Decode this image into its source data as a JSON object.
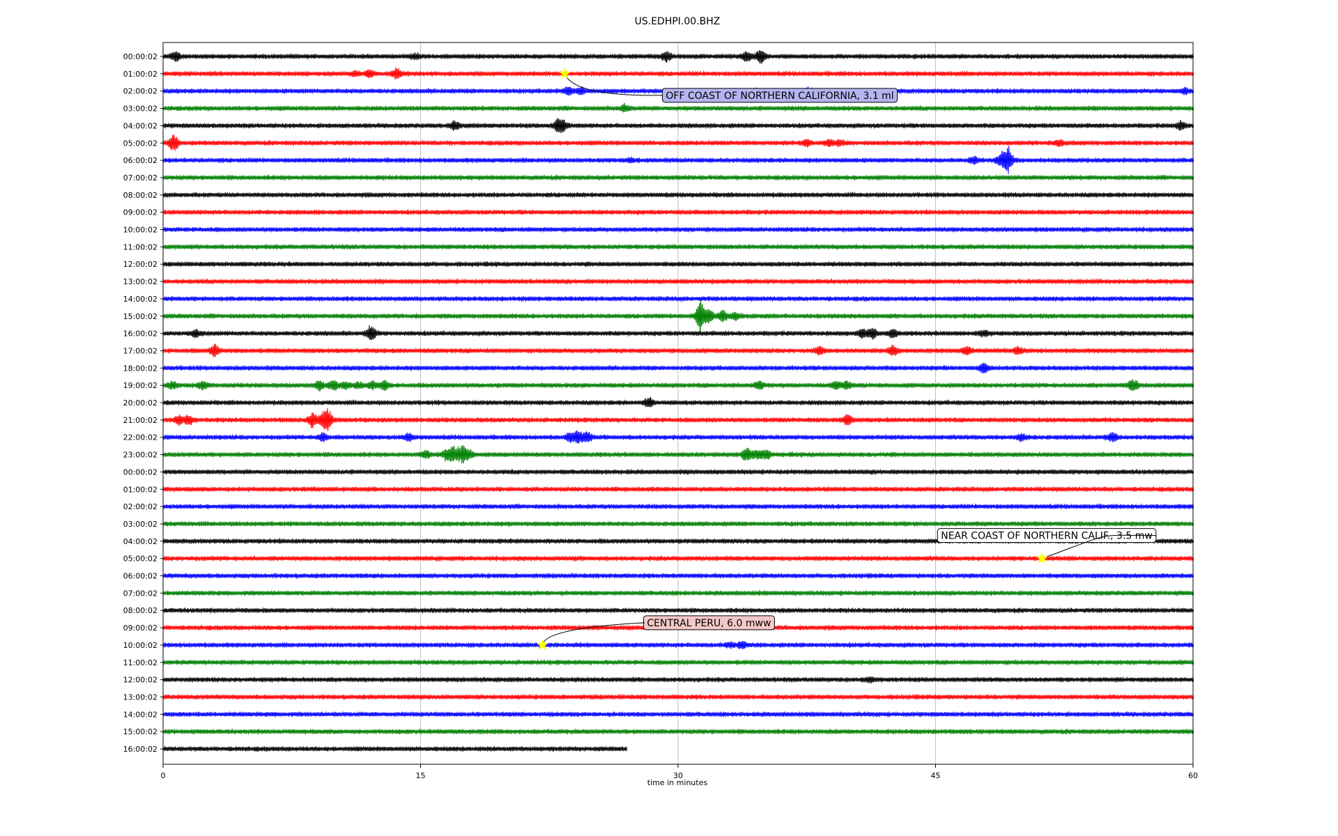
{
  "chart_data": {
    "type": "line",
    "title": "US.EDHPI.00.BHZ",
    "xlabel": "time in minutes",
    "ylabel": "",
    "xlim": [
      0,
      60
    ],
    "xticks": [
      0,
      15,
      30,
      45,
      60
    ],
    "grid": "vertical",
    "colors": [
      "#000000",
      "#ff0000",
      "#0000ff",
      "#008000"
    ],
    "row_labels": [
      "00:00:02",
      "01:00:02",
      "02:00:02",
      "03:00:02",
      "04:00:02",
      "05:00:02",
      "06:00:02",
      "07:00:02",
      "08:00:02",
      "09:00:02",
      "10:00:02",
      "11:00:02",
      "12:00:02",
      "13:00:02",
      "14:00:02",
      "15:00:02",
      "16:00:02",
      "17:00:02",
      "18:00:02",
      "19:00:02",
      "20:00:02",
      "21:00:02",
      "22:00:02",
      "23:00:02",
      "00:00:02",
      "01:00:02",
      "02:00:02",
      "03:00:02",
      "04:00:02",
      "05:00:02",
      "06:00:02",
      "07:00:02",
      "08:00:02",
      "09:00:02",
      "10:00:02",
      "11:00:02",
      "12:00:02",
      "13:00:02",
      "14:00:02",
      "15:00:02",
      "16:00:02"
    ],
    "last_row_end_minutes": 27,
    "bursts": [
      [
        0,
        0.7,
        0.6
      ],
      [
        0,
        29.3,
        0.6
      ],
      [
        0,
        34,
        0.6
      ],
      [
        0,
        34.8,
        0.8
      ],
      [
        0,
        14.7,
        0.3
      ],
      [
        1,
        12,
        0.4
      ],
      [
        1,
        13.6,
        0.6
      ],
      [
        1,
        11.2,
        0.3
      ],
      [
        2,
        23.6,
        0.5
      ],
      [
        2,
        24.3,
        0.4
      ],
      [
        2,
        37.5,
        0.4
      ],
      [
        2,
        34.5,
        0.3
      ],
      [
        2,
        59.5,
        0.3
      ],
      [
        3,
        26.9,
        0.4
      ],
      [
        4,
        17,
        0.6
      ],
      [
        4,
        23,
        0.7
      ],
      [
        4,
        23.3,
        0.6
      ],
      [
        4,
        59.3,
        0.5
      ],
      [
        5,
        0.6,
        1.0
      ],
      [
        5,
        37.5,
        0.4
      ],
      [
        5,
        38.8,
        0.3
      ],
      [
        5,
        39.4,
        0.3
      ],
      [
        5,
        52.2,
        0.4
      ],
      [
        6,
        47.2,
        0.4
      ],
      [
        6,
        48.8,
        0.8
      ],
      [
        6,
        49.2,
        1.7
      ],
      [
        6,
        27.2,
        0.2
      ],
      [
        15,
        31.3,
        2.0
      ],
      [
        15,
        31.8,
        0.8
      ],
      [
        15,
        32.6,
        0.6
      ],
      [
        15,
        33.3,
        0.4
      ],
      [
        16,
        1.9,
        0.4
      ],
      [
        16,
        12.1,
        0.9
      ],
      [
        16,
        40.7,
        0.5
      ],
      [
        16,
        41.3,
        0.6
      ],
      [
        16,
        42.5,
        0.5
      ],
      [
        16,
        47.8,
        0.3
      ],
      [
        17,
        3,
        0.7
      ],
      [
        17,
        38.2,
        0.5
      ],
      [
        17,
        42.5,
        0.6
      ],
      [
        17,
        46.8,
        0.5
      ],
      [
        17,
        49.8,
        0.4
      ],
      [
        18,
        47.8,
        0.6
      ],
      [
        19,
        0.5,
        0.4
      ],
      [
        19,
        2.3,
        0.5
      ],
      [
        19,
        9.1,
        0.6
      ],
      [
        19,
        9.9,
        0.7
      ],
      [
        19,
        10.6,
        0.4
      ],
      [
        19,
        11.4,
        0.3
      ],
      [
        19,
        12.2,
        0.5
      ],
      [
        19,
        12.9,
        0.6
      ],
      [
        19,
        34.7,
        0.5
      ],
      [
        19,
        39.2,
        0.5
      ],
      [
        19,
        39.8,
        0.5
      ],
      [
        19,
        56.5,
        0.9
      ],
      [
        20,
        28.3,
        0.6
      ],
      [
        21,
        0.9,
        0.5
      ],
      [
        21,
        1.5,
        0.6
      ],
      [
        21,
        8.7,
        0.9
      ],
      [
        21,
        9.3,
        0.7
      ],
      [
        21,
        9.6,
        1.2
      ],
      [
        21,
        39.9,
        0.7
      ],
      [
        22,
        9.3,
        0.5
      ],
      [
        22,
        14.3,
        0.4
      ],
      [
        22,
        23.7,
        0.5
      ],
      [
        22,
        24.2,
        0.8
      ],
      [
        22,
        24.7,
        0.6
      ],
      [
        22,
        50,
        0.4
      ],
      [
        22,
        55.3,
        0.5
      ],
      [
        23,
        15.3,
        0.4
      ],
      [
        23,
        16.5,
        0.6
      ],
      [
        23,
        16.9,
        0.9
      ],
      [
        23,
        17.4,
        1.1
      ],
      [
        23,
        17.8,
        0.5
      ],
      [
        23,
        34,
        1.0
      ],
      [
        23,
        34.6,
        0.6
      ],
      [
        23,
        35.1,
        0.6
      ],
      [
        34,
        33,
        0.3
      ],
      [
        34,
        33.7,
        0.4
      ],
      [
        36,
        41.2,
        0.2
      ]
    ],
    "events": [
      {
        "label": "OFF COAST OF NORTHERN CALIFORNIA, 3.1 ml",
        "row": 1,
        "minute": 23.4,
        "box_color": "#b4b4f0"
      },
      {
        "label": "NEAR COAST OF NORTHERN CALIF., 3.5 mw",
        "row": 29,
        "minute": 51.2,
        "box_color": "#ffffff"
      },
      {
        "label": "CENTRAL PERU, 6.0 mww",
        "row": 34,
        "minute": 22.1,
        "box_color": "#f4c8c8"
      }
    ]
  }
}
